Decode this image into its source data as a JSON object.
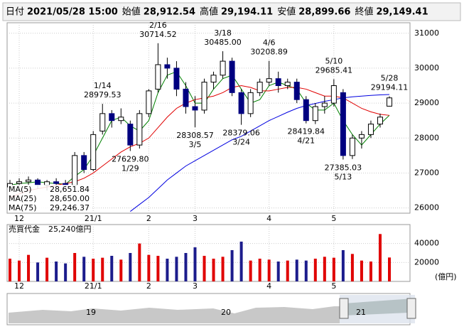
{
  "header": [
    {
      "label": "日付",
      "value": "2021/05/28 15:00",
      "color": "#000000"
    },
    {
      "label": "始値",
      "value": "28,912.54",
      "color": "#000000"
    },
    {
      "label": "高値",
      "value": "29,194.11",
      "color": "#e00000"
    },
    {
      "label": "安値",
      "value": "28,899.66",
      "color": "#007000"
    },
    {
      "label": "終値",
      "value": "29,149.41",
      "color": "#000000"
    }
  ],
  "chart_data": {
    "type": "candlestick",
    "categories": [
      null,
      "12",
      null,
      null,
      null,
      null,
      null,
      null,
      null,
      "21/1",
      null,
      null,
      null,
      null,
      null,
      "2",
      null,
      null,
      null,
      null,
      "3",
      null,
      null,
      null,
      null,
      null,
      null,
      null,
      "4",
      null,
      null,
      null,
      null,
      null,
      null,
      "5",
      null,
      null,
      null,
      null,
      null,
      null
    ],
    "ohlc": [
      [
        26600,
        26800,
        26500,
        26700
      ],
      [
        26700,
        26850,
        26600,
        26750
      ],
      [
        26750,
        26900,
        26650,
        26800
      ],
      [
        26800,
        26850,
        26550,
        26650
      ],
      [
        26650,
        26800,
        26500,
        26750
      ],
      [
        26750,
        26850,
        26600,
        26700
      ],
      [
        26700,
        26800,
        26550,
        26650
      ],
      [
        26650,
        27600,
        26650,
        27500
      ],
      [
        27500,
        27600,
        27000,
        27100
      ],
      [
        27100,
        28200,
        27050,
        28100
      ],
      [
        28200,
        28979.53,
        28100,
        28700
      ],
      [
        28700,
        28800,
        28300,
        28500
      ],
      [
        28500,
        28850,
        28400,
        28600
      ],
      [
        28400,
        28500,
        27629.8,
        27800
      ],
      [
        27800,
        28800,
        27700,
        28700
      ],
      [
        28700,
        29400,
        28600,
        29350
      ],
      [
        29400,
        30714.52,
        29300,
        30100
      ],
      [
        30100,
        30300,
        29700,
        30000
      ],
      [
        30000,
        30200,
        29200,
        29400
      ],
      [
        29400,
        29600,
        28700,
        28900
      ],
      [
        28900,
        29200,
        28308.57,
        28800
      ],
      [
        28800,
        29700,
        28700,
        29600
      ],
      [
        29600,
        29900,
        29400,
        29800
      ],
      [
        29800,
        30485,
        29700,
        30200
      ],
      [
        30200,
        30300,
        29200,
        29300
      ],
      [
        29300,
        29400,
        28379.06,
        28700
      ],
      [
        28700,
        29400,
        28600,
        29300
      ],
      [
        29300,
        29700,
        29200,
        29600
      ],
      [
        29600,
        30208.89,
        29500,
        29700
      ],
      [
        29700,
        29900,
        29300,
        29500
      ],
      [
        29500,
        29700,
        29400,
        29600
      ],
      [
        29600,
        29700,
        29000,
        29100
      ],
      [
        29100,
        29200,
        28419.84,
        28500
      ],
      [
        28500,
        29000,
        28400,
        28900
      ],
      [
        28900,
        29200,
        28700,
        29000
      ],
      [
        29000,
        29685.41,
        28900,
        29500
      ],
      [
        29300,
        29400,
        27385.03,
        27500
      ],
      [
        27500,
        28100,
        27400,
        28000
      ],
      [
        28000,
        28200,
        27700,
        28100
      ],
      [
        28100,
        28500,
        28000,
        28400
      ],
      [
        28400,
        28700,
        28300,
        28600
      ],
      [
        28912.54,
        29194.11,
        28899.66,
        29149.41
      ]
    ],
    "up_color": "#ffffff",
    "down_color": "#000080",
    "series": [
      {
        "name": "MA(5)",
        "color": "#008000",
        "value_label": "28,651.84",
        "values": [
          26650,
          26700,
          26720,
          26750,
          26720,
          26700,
          26680,
          26900,
          27100,
          27500,
          28000,
          28500,
          28600,
          28350,
          28200,
          28500,
          29300,
          29800,
          29900,
          29500,
          29000,
          29000,
          29400,
          29700,
          29800,
          29400,
          29000,
          29100,
          29500,
          29600,
          29500,
          29400,
          29000,
          28800,
          28800,
          29000,
          28500,
          28100,
          27800,
          28100,
          28400,
          28651.84
        ]
      },
      {
        "name": "MA(25)",
        "color": "#e00000",
        "value_label": "28,650.00",
        "values": [
          26300,
          26400,
          26500,
          26550,
          26600,
          26650,
          26700,
          26750,
          26850,
          27000,
          27200,
          27400,
          27600,
          27750,
          27850,
          28000,
          28300,
          28600,
          28850,
          29000,
          29100,
          29150,
          29200,
          29300,
          29450,
          29500,
          29450,
          29350,
          29350,
          29400,
          29450,
          29450,
          29400,
          29300,
          29200,
          29200,
          29150,
          29000,
          28850,
          28750,
          28680,
          28650
        ]
      },
      {
        "name": "MA(75)",
        "color": "#0000e0",
        "value_label": "29,246.37",
        "values": [
          null,
          null,
          null,
          null,
          null,
          null,
          null,
          null,
          null,
          null,
          null,
          null,
          null,
          25900,
          26100,
          26300,
          26550,
          26800,
          27000,
          27200,
          27350,
          27500,
          27650,
          27800,
          27950,
          28050,
          28200,
          28350,
          28500,
          28620,
          28740,
          28850,
          28930,
          28990,
          29050,
          29100,
          29150,
          29180,
          29200,
          29220,
          29235,
          29246.37
        ]
      }
    ],
    "ylim": [
      25850,
      31300
    ],
    "yticks": [
      26000,
      27000,
      28000,
      29000,
      30000,
      31000
    ],
    "grid": true,
    "annotations": [
      {
        "date": "1/14",
        "value": 28979.53
      },
      {
        "date": "1/29",
        "value": 27629.8,
        "label": "27629.80"
      },
      {
        "date": "2/16",
        "value": 30714.52
      },
      {
        "date": "3/5",
        "value": 28308.57
      },
      {
        "date": "3/18",
        "value": 30485,
        "label": "30485.00"
      },
      {
        "date": "3/24",
        "value": 28379.06
      },
      {
        "date": "4/6",
        "value": 30208.89
      },
      {
        "date": "4/21",
        "value": 28419.84
      },
      {
        "date": "5/10",
        "value": 29685.41
      },
      {
        "date": "5/13",
        "value": 27385.03
      },
      {
        "date": "5/28",
        "value": 29194.11
      }
    ],
    "volume": {
      "title": "売買代金",
      "value_label": "25,240億円",
      "unit": "(億円)",
      "up_color": "#e00000",
      "down_color": "#1c1c8c",
      "values": [
        24000,
        22000,
        28000,
        20000,
        25000,
        21000,
        19000,
        30000,
        26000,
        24000,
        25000,
        27000,
        23000,
        30000,
        40000,
        28000,
        27000,
        24000,
        26000,
        30000,
        36000,
        27000,
        24000,
        26000,
        33000,
        42000,
        22000,
        24000,
        23000,
        21000,
        22000,
        23000,
        22000,
        24000,
        26000,
        25000,
        33000,
        29000,
        22000,
        21000,
        50000,
        25240
      ],
      "ylim": [
        0,
        60000
      ],
      "yticks": [
        20000,
        40000
      ]
    }
  },
  "navigator": {
    "labels": [
      "19",
      "20",
      "21"
    ]
  }
}
